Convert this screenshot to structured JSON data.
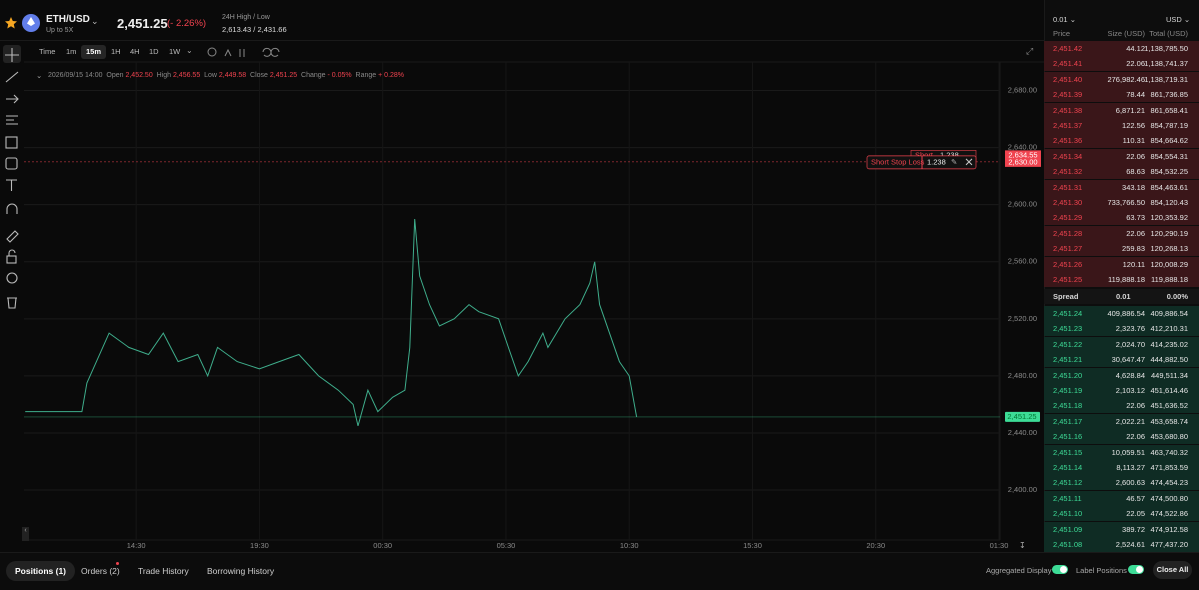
{
  "header": {
    "pair": "ETH/USD",
    "leverage": "Up to 5X",
    "price": "2,451.25",
    "change": "(- 2.26%)",
    "hl_label": "24H High / Low",
    "hl_value": "2,613.43 / 2,431.66"
  },
  "toolbar": {
    "intervals": [
      "Time",
      "1m",
      "15m",
      "1H",
      "4H",
      "1D",
      "1W"
    ],
    "active": "15m"
  },
  "ohlc": {
    "date": "2026/09/15 14:00",
    "open_label": "Open",
    "open": "2,452.50",
    "high_label": "High",
    "high": "2,456.55",
    "low_label": "Low",
    "low": "2,449.58",
    "close_label": "Close",
    "close": "2,451.25",
    "change_label": "Change",
    "change": "- 0.05%",
    "range_label": "Range",
    "range": "+ 0.28%"
  },
  "chart_data": {
    "type": "line",
    "color": "#3fae8c",
    "x": [
      -4.5,
      -2.2,
      -2.0,
      -1.1,
      -0.3,
      0.5,
      1.1,
      1.7,
      2.5,
      2.9,
      3.3,
      4.1,
      5.0,
      5.8,
      6.6,
      7.4,
      8.2,
      8.8,
      9.0,
      9.4,
      9.8,
      10.4,
      10.9,
      11.1,
      11.3,
      11.5,
      11.9,
      12.3,
      12.9,
      13.5,
      13.9,
      14.7,
      15.1,
      15.5,
      15.9,
      16.5,
      16.7,
      17.4,
      18.0,
      18.4,
      18.6,
      18.8,
      19.2,
      19.6,
      20.0,
      20.3
    ],
    "values": [
      2455,
      2455,
      2475,
      2510,
      2500,
      2495,
      2510,
      2490,
      2495,
      2480,
      2500,
      2490,
      2485,
      2490,
      2495,
      2480,
      2470,
      2460,
      2445,
      2470,
      2455,
      2465,
      2470,
      2500,
      2590,
      2550,
      2530,
      2515,
      2520,
      2530,
      2525,
      2520,
      2500,
      2480,
      2490,
      2510,
      2500,
      2520,
      2530,
      2545,
      2560,
      2530,
      2510,
      2490,
      2480,
      2451.25
    ],
    "xlim": [
      -4.55,
      35.04
    ],
    "ylim": [
      2365,
      2700
    ],
    "xticks": [
      {
        "value": 0,
        "label": "14:30"
      },
      {
        "value": 5,
        "label": "19:30"
      },
      {
        "value": 10,
        "label": "00:30"
      },
      {
        "value": 15,
        "label": "05:30"
      },
      {
        "value": 20,
        "label": "10:30"
      },
      {
        "value": 25,
        "label": "15:30"
      },
      {
        "value": 30,
        "label": "20:30"
      },
      {
        "value": 35,
        "label": "01:30"
      }
    ],
    "yticks": [
      {
        "value": 2400,
        "label": "2,400.00"
      },
      {
        "value": 2440,
        "label": "2,440.00"
      },
      {
        "value": 2480,
        "label": "2,480.00"
      },
      {
        "value": 2520,
        "label": "2,520.00"
      },
      {
        "value": 2560,
        "label": "2,560.00"
      },
      {
        "value": 2600,
        "label": "2,600.00"
      },
      {
        "value": 2640,
        "label": "2,640.00"
      },
      {
        "value": 2680,
        "label": "2,680.00"
      }
    ],
    "grid": true,
    "last_price": {
      "value": 2451.25,
      "label": "2,451.25",
      "color": "#3ddc97"
    },
    "short": {
      "value": 2634.55,
      "label": "2,634.55",
      "name": "Short",
      "qty": "1.238"
    },
    "stop_loss": {
      "value": 2630,
      "label": "2,630.00",
      "name": "Short Stop Loss",
      "qty": "1.238",
      "color": "#f0434f"
    }
  },
  "orderbook": {
    "tick": "0.01",
    "currency": "USD",
    "columns": [
      "Price",
      "Size (USD)",
      "Total (USD)"
    ],
    "asks": [
      [
        "2,451.42",
        "44.12",
        "1,138,785.50"
      ],
      [
        "2,451.41",
        "22.06",
        "1,138,741.37"
      ],
      [
        "2,451.40",
        "276,982.46",
        "1,138,719.31"
      ],
      [
        "2,451.39",
        "78.44",
        "861,736.85"
      ],
      [
        "2,451.38",
        "6,871.21",
        "861,658.41"
      ],
      [
        "2,451.37",
        "122.56",
        "854,787.19"
      ],
      [
        "2,451.36",
        "110.31",
        "854,664.62"
      ],
      [
        "2,451.34",
        "22.06",
        "854,554.31"
      ],
      [
        "2,451.32",
        "68.63",
        "854,532.25"
      ],
      [
        "2,451.31",
        "343.18",
        "854,463.61"
      ],
      [
        "2,451.30",
        "733,766.50",
        "854,120.43"
      ],
      [
        "2,451.29",
        "63.73",
        "120,353.92"
      ],
      [
        "2,451.28",
        "22.06",
        "120,290.19"
      ],
      [
        "2,451.27",
        "259.83",
        "120,268.13"
      ],
      [
        "2,451.26",
        "120.11",
        "120,008.29"
      ],
      [
        "2,451.25",
        "119,888.18",
        "119,888.18"
      ]
    ],
    "spread": [
      "Spread",
      "0.01",
      "0.00%"
    ],
    "bids": [
      [
        "2,451.24",
        "409,886.54",
        "409,886.54"
      ],
      [
        "2,451.23",
        "2,323.76",
        "412,210.31"
      ],
      [
        "2,451.22",
        "2,024.70",
        "414,235.02"
      ],
      [
        "2,451.21",
        "30,647.47",
        "444,882.50"
      ],
      [
        "2,451.20",
        "4,628.84",
        "449,511.34"
      ],
      [
        "2,451.19",
        "2,103.12",
        "451,614.46"
      ],
      [
        "2,451.18",
        "22.06",
        "451,636.52"
      ],
      [
        "2,451.17",
        "2,022.21",
        "453,658.74"
      ],
      [
        "2,451.16",
        "22.06",
        "453,680.80"
      ],
      [
        "2,451.15",
        "10,059.51",
        "463,740.32"
      ],
      [
        "2,451.14",
        "8,113.27",
        "471,853.59"
      ],
      [
        "2,451.12",
        "2,600.63",
        "474,454.23"
      ],
      [
        "2,451.11",
        "46.57",
        "474,500.80"
      ],
      [
        "2,451.10",
        "22.05",
        "474,522.86"
      ],
      [
        "2,451.09",
        "389.72",
        "474,912.58"
      ],
      [
        "2,451.08",
        "2,524.61",
        "477,437.20"
      ]
    ]
  },
  "bottom": {
    "tabs": [
      "Positions (1)",
      "Orders (2)",
      "Trade History",
      "Borrowing History"
    ],
    "aggregated": "Aggregated Display",
    "label_positions": "Label Positions",
    "close_all": "Close All"
  }
}
